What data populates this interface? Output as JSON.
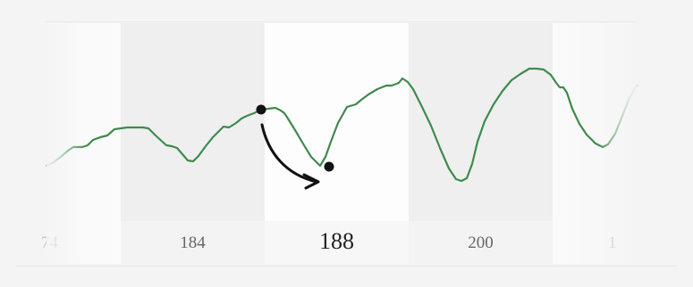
{
  "timeline": {
    "selected_label": "188",
    "labels": [
      "74",
      "184",
      "188",
      "200",
      "1"
    ]
  },
  "colors": {
    "line": "#3f8a4d",
    "line_faded": "#a9cfb0",
    "marker": "#111111",
    "arrow": "#111111"
  },
  "icons": {
    "start_marker": "circle-dot",
    "end_marker": "circle-dot",
    "drag_hint": "curved-arrow-down-right"
  }
}
